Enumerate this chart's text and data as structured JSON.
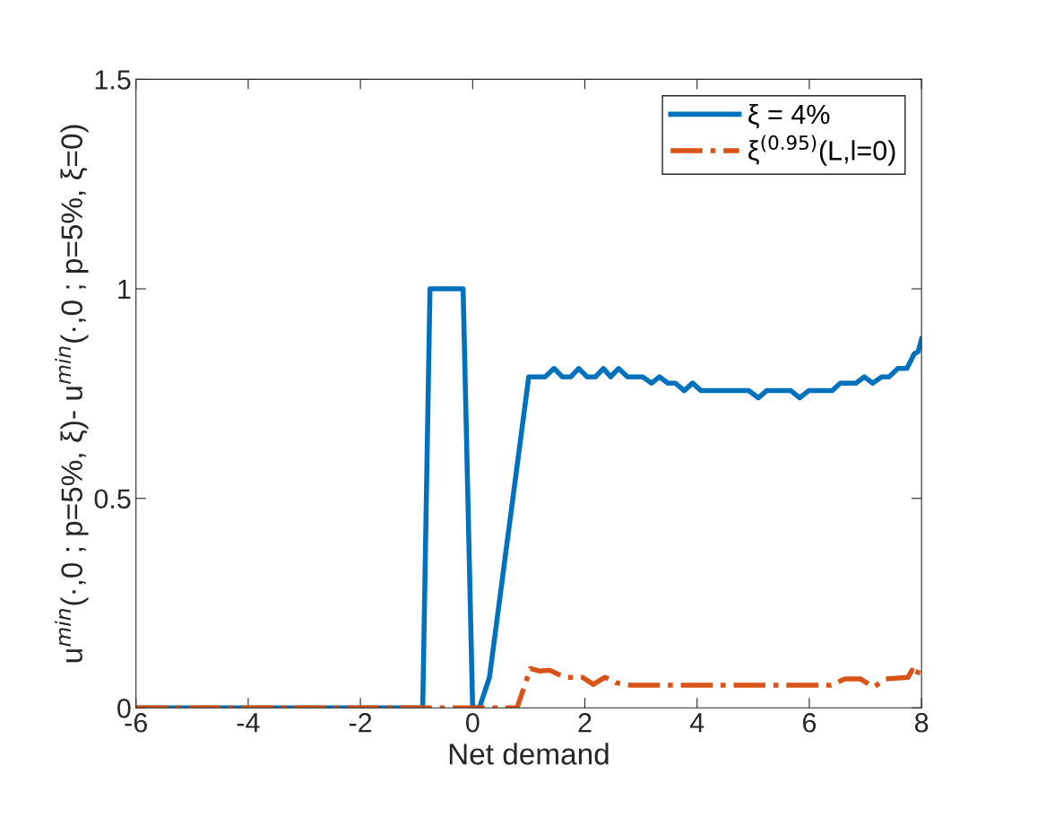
{
  "chart_data": {
    "type": "line",
    "xlabel": "Net demand",
    "ylabel": "u$^{min}$(·,0 ; p=5%, ξ)- u$^{min}$(·,0 ; p=5%, ξ=0)",
    "xlim": [
      -6,
      8
    ],
    "xticks": [
      -6,
      -4,
      -2,
      0,
      2,
      4,
      6,
      8
    ],
    "ylim": [
      0,
      1.5
    ],
    "yticks": [
      0,
      0.5,
      1,
      1.5
    ],
    "grid": false,
    "legend": "top right",
    "marker": "none",
    "series": [
      {
        "name": "ξ = 4%",
        "color": "#0072bd",
        "line_style": "solid",
        "x": [
          -6,
          -0.89,
          -0.76,
          -0.17,
          0.0,
          0.12,
          0.3,
          1.0,
          1.29,
          1.45,
          1.6,
          1.75,
          1.89,
          2.04,
          2.19,
          2.33,
          2.46,
          2.6,
          2.76,
          3.03,
          3.19,
          3.33,
          3.48,
          3.61,
          3.77,
          3.92,
          4.07,
          4.92,
          5.09,
          5.24,
          5.67,
          5.83,
          5.99,
          6.41,
          6.55,
          6.83,
          6.98,
          7.13,
          7.29,
          7.42,
          7.58,
          7.74,
          7.87,
          7.94,
          8.0
        ],
        "values": [
          0,
          0,
          1.0,
          1.0,
          0,
          0,
          0.073,
          0.79,
          0.79,
          0.81,
          0.79,
          0.79,
          0.81,
          0.79,
          0.79,
          0.81,
          0.79,
          0.81,
          0.79,
          0.79,
          0.775,
          0.79,
          0.775,
          0.775,
          0.757,
          0.775,
          0.757,
          0.757,
          0.74,
          0.757,
          0.757,
          0.74,
          0.757,
          0.757,
          0.775,
          0.775,
          0.79,
          0.775,
          0.79,
          0.79,
          0.81,
          0.81,
          0.845,
          0.85,
          0.88
        ]
      },
      {
        "name": "ξ$^{(0.95)}$(L,l=0)",
        "color": "#d95319",
        "line_style": "dashed",
        "x": [
          -6,
          0.79,
          1.03,
          1.19,
          1.37,
          1.64,
          1.96,
          2.15,
          2.36,
          2.55,
          2.81,
          6.39,
          6.63,
          6.91,
          7.15,
          7.36,
          7.76,
          7.83,
          7.9,
          8.0
        ],
        "values": [
          0,
          0,
          0.094,
          0.088,
          0.09,
          0.073,
          0.073,
          0.056,
          0.073,
          0.06,
          0.054,
          0.054,
          0.069,
          0.069,
          0.05,
          0.069,
          0.073,
          0.09,
          0.075,
          0.105
        ]
      }
    ]
  }
}
